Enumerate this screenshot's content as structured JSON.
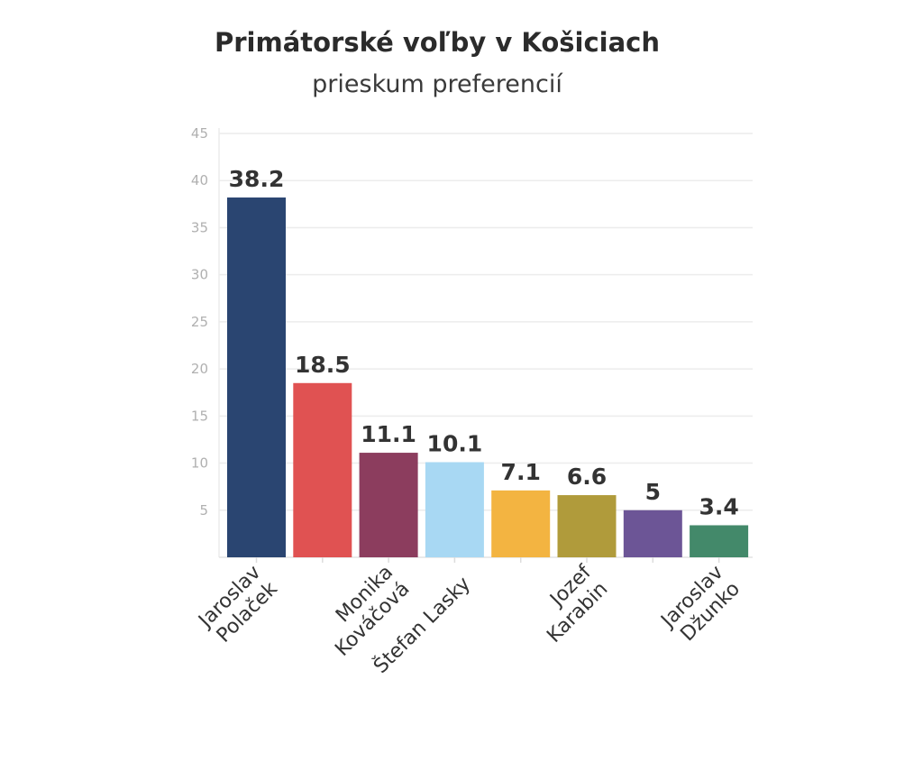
{
  "chart_data": {
    "type": "bar",
    "title": "Primátorské voľby v Košiciach",
    "subtitle": "prieskum preferencií",
    "categories": [
      [
        "Jaroslav",
        "Polaček"
      ],
      [
        "",
        ""
      ],
      [
        "Monika",
        "Kováčová"
      ],
      [
        "Štefan Lasky",
        ""
      ],
      [
        "",
        ""
      ],
      [
        "Jozef",
        "Karabin"
      ],
      [
        "",
        ""
      ],
      [
        "Jaroslav",
        "Džunko"
      ]
    ],
    "values": [
      38.2,
      18.5,
      11.1,
      10.1,
      7.1,
      6.6,
      5,
      3.4
    ],
    "value_labels": [
      "38.2",
      "18.5",
      "11.1",
      "10.1",
      "7.1",
      "6.6",
      "5",
      "3.4"
    ],
    "colors": [
      "#2a4571",
      "#e05252",
      "#8c3d5e",
      "#a8d8f3",
      "#f3b441",
      "#b09b3b",
      "#6c5596",
      "#43896a"
    ],
    "ylim": [
      0,
      45
    ],
    "yticks": [
      5,
      10,
      15,
      20,
      25,
      30,
      35,
      40,
      45
    ],
    "grid": true,
    "legend": "none"
  }
}
